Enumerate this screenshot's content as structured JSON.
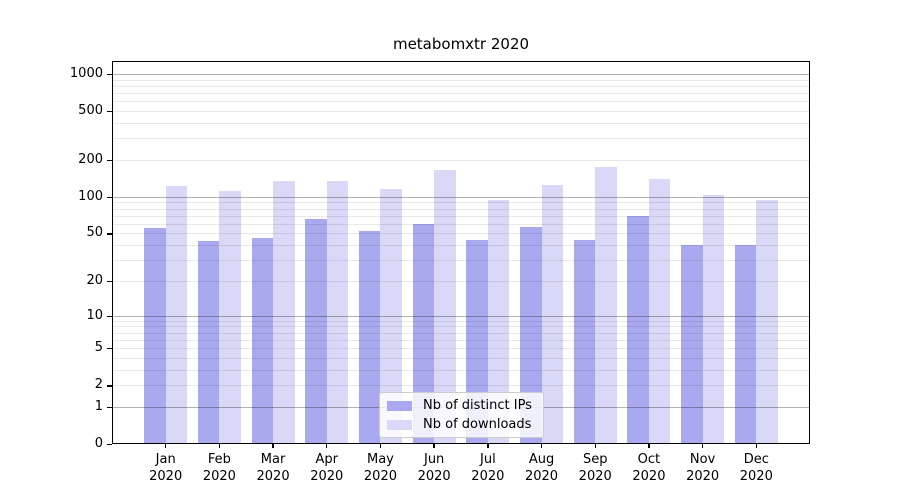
{
  "chart_data": {
    "type": "bar",
    "title": "metabomxtr 2020",
    "categories": [
      "Jan 2020",
      "Feb 2020",
      "Mar 2020",
      "Apr 2020",
      "May 2020",
      "Jun 2020",
      "Jul 2020",
      "Aug 2020",
      "Sep 2020",
      "Oct 2020",
      "Nov 2020",
      "Dec 2020"
    ],
    "series": [
      {
        "name": "Nb of distinct IPs",
        "color": "#a9a9f0",
        "values": [
          55,
          43,
          46,
          66,
          52,
          60,
          44,
          57,
          44,
          69,
          40,
          40
        ]
      },
      {
        "name": "Nb of downloads",
        "color": "#d9d9f7",
        "values": [
          122,
          111,
          135,
          136,
          117,
          166,
          95,
          125,
          176,
          141,
          103,
          95
        ]
      }
    ],
    "yticks": [
      0,
      1,
      2,
      5,
      10,
      20,
      50,
      100,
      200,
      500,
      1000
    ],
    "scale": "log10(value+1)",
    "ylim": [
      0,
      1275
    ],
    "grid": "both",
    "legend_position": "lower-center"
  }
}
